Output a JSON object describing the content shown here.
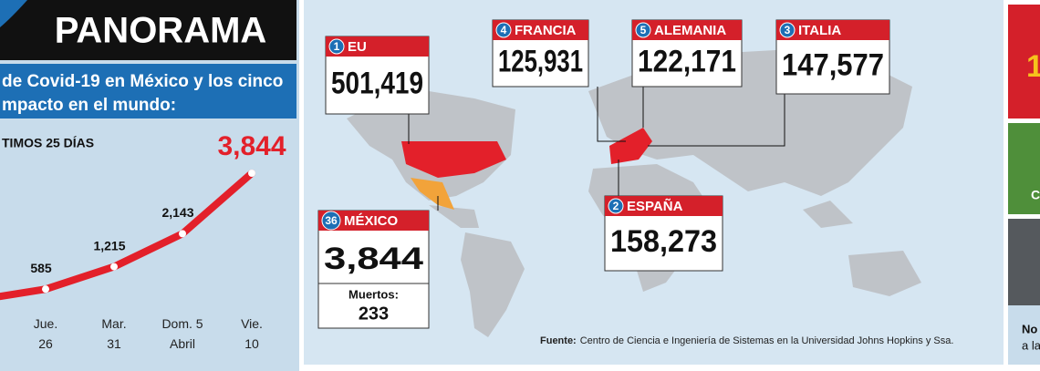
{
  "header": {
    "title": "PANORAMA",
    "subtitle_lines": [
      "de Covid-19 en México y los cinco",
      "mpacto en el mundo:"
    ]
  },
  "chart_data": {
    "type": "line",
    "title": "TIMOS 25 DÍAS",
    "categories": [
      "Jue. 26",
      "Mar. 31",
      "Dom. 5 Abril",
      "Vie. 10"
    ],
    "values": [
      585,
      1215,
      2143,
      3844
    ],
    "value_labels": [
      "585",
      "1,215",
      "2,143",
      "3,844"
    ],
    "color": "#e3202a"
  },
  "callouts": [
    {
      "rank": "1",
      "country": "EU",
      "cases": "501,419"
    },
    {
      "rank": "4",
      "country": "FRANCIA",
      "cases": "125,931"
    },
    {
      "rank": "5",
      "country": "ALEMANIA",
      "cases": "122,171"
    },
    {
      "rank": "3",
      "country": "ITALIA",
      "cases": "147,577"
    },
    {
      "rank": "2",
      "country": "ESPAÑA",
      "cases": "158,273"
    },
    {
      "rank": "36",
      "country": "MÉXICO",
      "cases": "3,844",
      "deaths_label": "Muertos:",
      "deaths": "233"
    }
  ],
  "source": {
    "label": "Fuente:",
    "text": "Centro de Ciencia e Ingeniería de Sistemas en la Universidad Johns Hopkins y Ssa."
  },
  "side_panel": [
    "1",
    "C",
    "No",
    "a la"
  ]
}
